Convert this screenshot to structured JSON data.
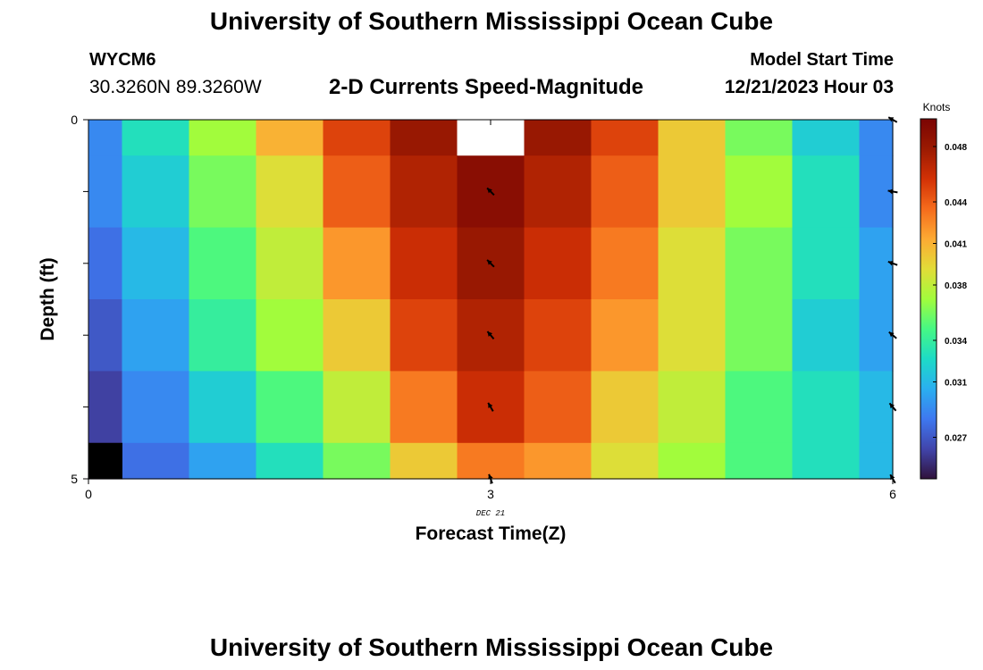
{
  "header": {
    "title": "University of Southern Mississippi Ocean Cube",
    "station": "WYCM6",
    "coords": "30.3260N  89.3260W",
    "subtitle": "2-D Currents Speed-Magnitude",
    "model_start_label": "Model Start Time",
    "model_start_value": "12/21/2023 Hour 03"
  },
  "footer": {
    "title": "University of Southern Mississippi Ocean Cube"
  },
  "colors": {
    "colormap": [
      "#30123b",
      "#4145ab",
      "#3e78f0",
      "#2aaff0",
      "#1ddbc6",
      "#46f884",
      "#a2fc3c",
      "#e2dc38",
      "#fdaa33",
      "#f56b1c",
      "#d23105",
      "#9b1a02",
      "#7a0403"
    ],
    "nodata": "#ffffff",
    "below_range": "#000000"
  },
  "chart_data": {
    "type": "heatmap",
    "xlabel": "Forecast Time(Z)",
    "ylabel": "Depth (ft)",
    "date_label": "DEC 21",
    "colorbar_label": "Knots",
    "x_ticks": [
      0,
      3,
      6
    ],
    "x_tick_labels": [
      "0",
      "3",
      "6"
    ],
    "y_ticks": [
      0,
      5
    ],
    "y_tick_labels": [
      "0",
      "5"
    ],
    "xlim": [
      0,
      6
    ],
    "ylim": [
      5,
      0
    ],
    "x_centers": [
      0,
      0.5,
      1,
      1.5,
      2,
      2.5,
      3,
      3.5,
      4,
      4.5,
      5,
      5.5,
      6
    ],
    "depth_rows": [
      0,
      1,
      2,
      3,
      4,
      5
    ],
    "values": [
      [
        0.029,
        0.033,
        0.037,
        0.041,
        0.045,
        0.048,
        null,
        0.048,
        0.045,
        0.04,
        0.036,
        0.032,
        0.029
      ],
      [
        0.029,
        0.032,
        0.036,
        0.039,
        0.044,
        0.047,
        0.049,
        0.047,
        0.044,
        0.04,
        0.037,
        0.033,
        0.029
      ],
      [
        0.028,
        0.031,
        0.035,
        0.038,
        0.042,
        0.046,
        0.048,
        0.046,
        0.043,
        0.039,
        0.036,
        0.033,
        0.03
      ],
      [
        0.027,
        0.03,
        0.034,
        0.037,
        0.04,
        0.045,
        0.047,
        0.045,
        0.042,
        0.039,
        0.036,
        0.032,
        0.03
      ],
      [
        0.026,
        0.029,
        0.032,
        0.035,
        0.038,
        0.043,
        0.046,
        0.044,
        0.04,
        0.038,
        0.035,
        0.033,
        0.031
      ],
      [
        0.024,
        0.028,
        0.03,
        0.033,
        0.036,
        0.04,
        0.043,
        0.042,
        0.039,
        0.037,
        0.035,
        0.033,
        0.031
      ]
    ],
    "vectors": [
      {
        "x": 3,
        "depth": 1,
        "direction_deg": 315
      },
      {
        "x": 3,
        "depth": 2,
        "direction_deg": 315
      },
      {
        "x": 3,
        "depth": 3,
        "direction_deg": 320
      },
      {
        "x": 3,
        "depth": 4,
        "direction_deg": 330
      },
      {
        "x": 3,
        "depth": 5,
        "direction_deg": 340
      },
      {
        "x": 6,
        "depth": 0,
        "direction_deg": 300
      },
      {
        "x": 6,
        "depth": 1,
        "direction_deg": 280
      },
      {
        "x": 6,
        "depth": 2,
        "direction_deg": 290
      },
      {
        "x": 6,
        "depth": 3,
        "direction_deg": 310
      },
      {
        "x": 6,
        "depth": 4,
        "direction_deg": 320
      },
      {
        "x": 6,
        "depth": 5,
        "direction_deg": 330
      }
    ],
    "colorbar": {
      "min": 0.024,
      "max": 0.05,
      "ticks": [
        0.027,
        0.031,
        0.034,
        0.038,
        0.041,
        0.044,
        0.048
      ],
      "tick_labels": [
        "0.027",
        "0.031",
        "0.034",
        "0.038",
        "0.041",
        "0.044",
        "0.048"
      ]
    }
  }
}
